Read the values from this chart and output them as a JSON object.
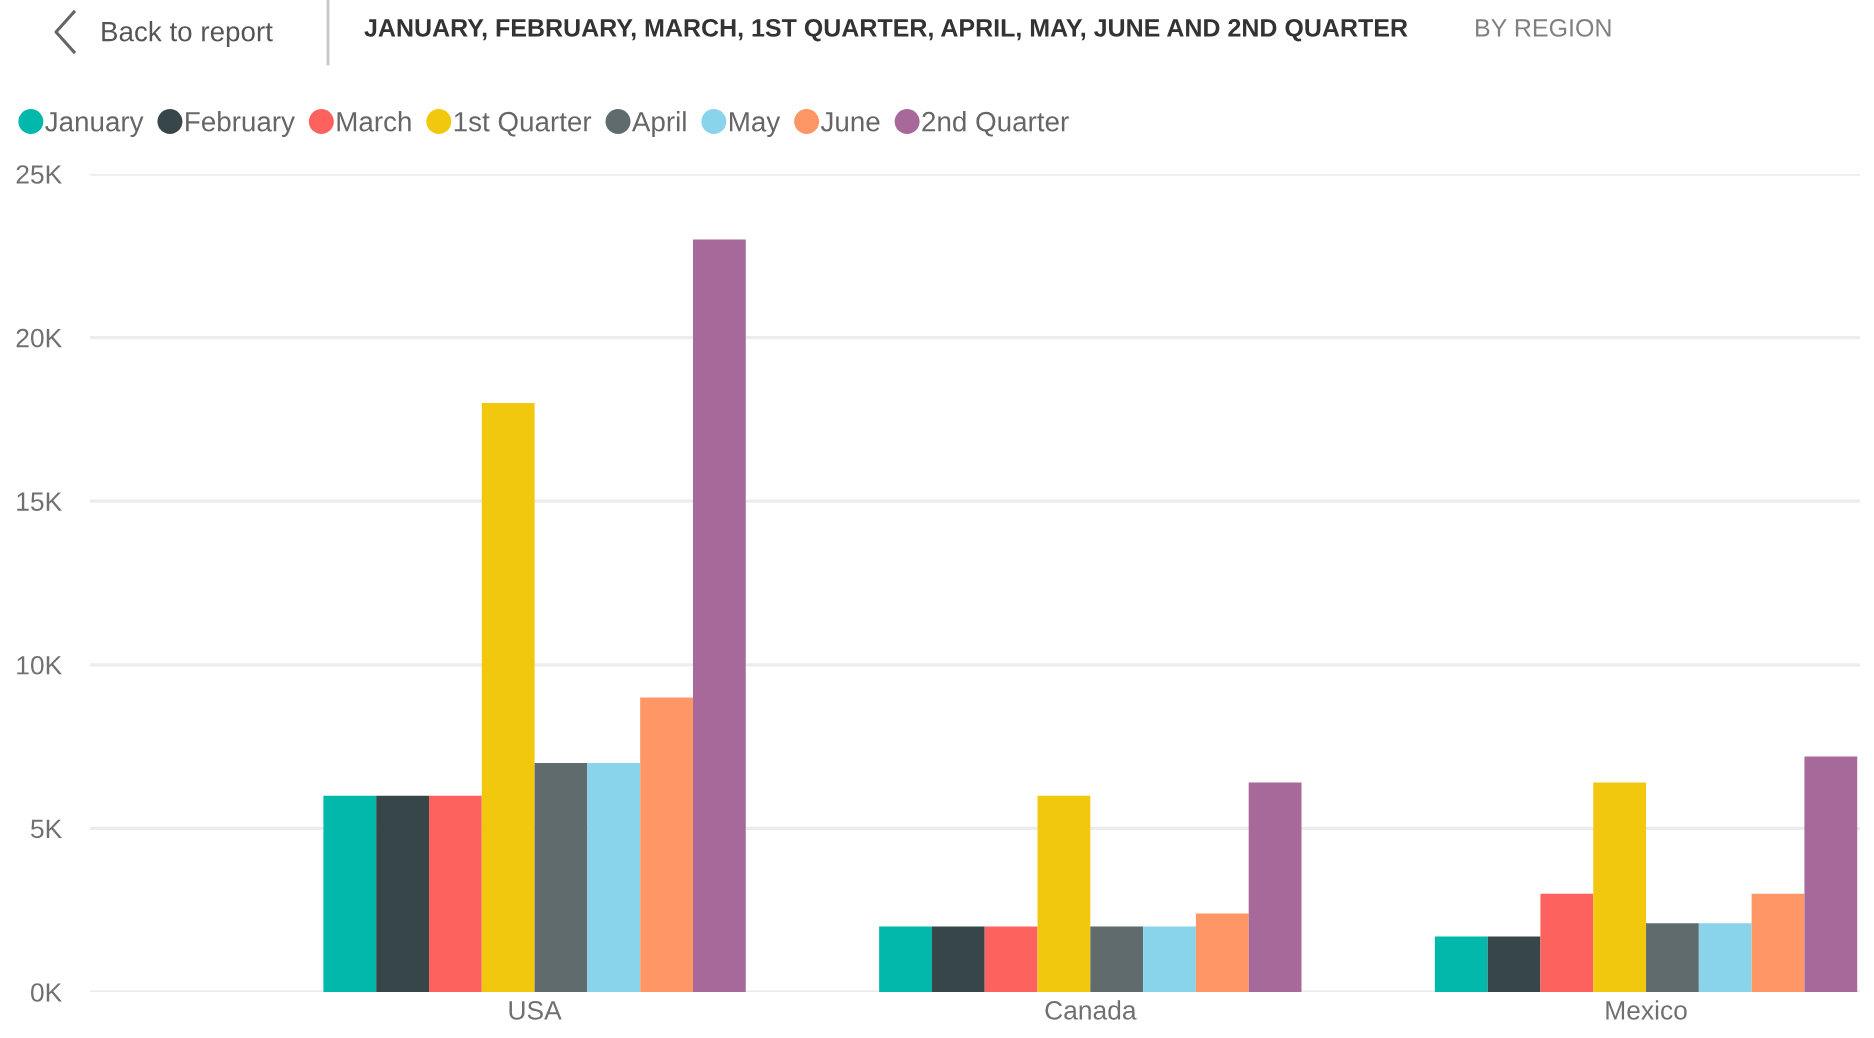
{
  "chart_data": {
    "type": "bar",
    "title": "JANUARY, FEBRUARY, MARCH, 1ST QUARTER, APRIL, MAY, JUNE AND 2ND QUARTER",
    "subtitle": "BY REGION",
    "annotations": [
      "Back to report"
    ],
    "categories": [
      "USA",
      "Canada",
      "Mexico"
    ],
    "series": [
      {
        "name": "January",
        "color": "#01b8aa",
        "values": [
          6000,
          2000,
          1700
        ]
      },
      {
        "name": "February",
        "color": "#374649",
        "values": [
          6000,
          2000,
          1700
        ]
      },
      {
        "name": "March",
        "color": "#fd625e",
        "values": [
          6000,
          2000,
          3000
        ]
      },
      {
        "name": "1st Quarter",
        "color": "#f2c80f",
        "values": [
          18000,
          6000,
          6400
        ]
      },
      {
        "name": "April",
        "color": "#5f6b6d",
        "values": [
          7000,
          2000,
          2100
        ]
      },
      {
        "name": "May",
        "color": "#8ad4eb",
        "values": [
          7000,
          2000,
          2100
        ]
      },
      {
        "name": "June",
        "color": "#fe9666",
        "values": [
          9000,
          2400,
          3000
        ]
      },
      {
        "name": "2nd Quarter",
        "color": "#a66999",
        "values": [
          23000,
          6400,
          7200
        ]
      }
    ],
    "ylim": [
      0,
      25000
    ],
    "yticks": [
      {
        "value": 0,
        "label": "0K"
      },
      {
        "value": 5000,
        "label": "5K"
      },
      {
        "value": 10000,
        "label": "10K"
      },
      {
        "value": 15000,
        "label": "15K"
      },
      {
        "value": 20000,
        "label": "20K"
      },
      {
        "value": 25000,
        "label": "25K"
      }
    ],
    "grid": "y",
    "legend": "top left"
  }
}
